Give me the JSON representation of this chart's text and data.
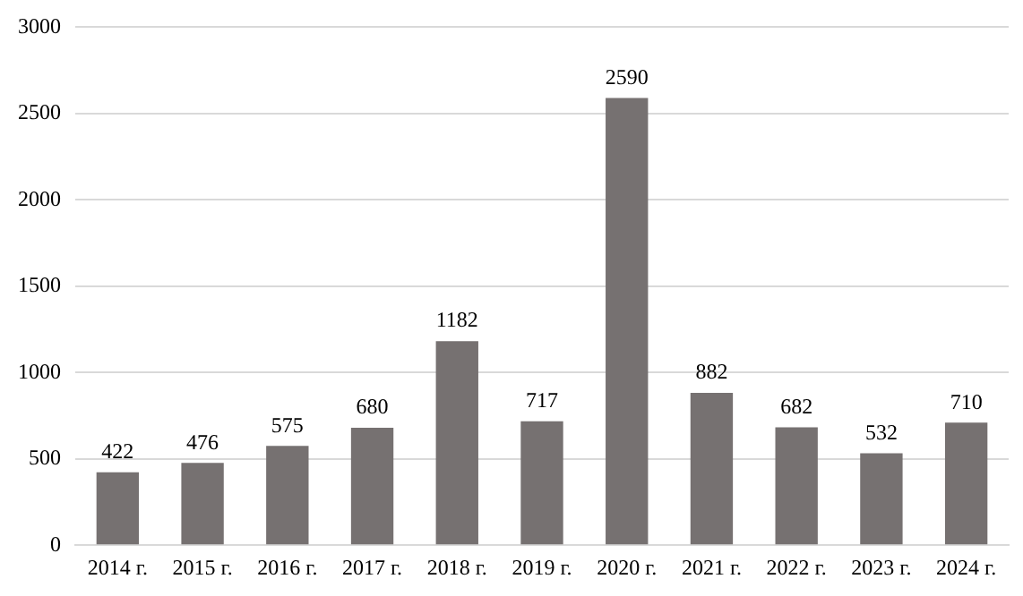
{
  "chart_data": {
    "type": "bar",
    "categories": [
      "2014 г.",
      "2015 г.",
      "2016 г.",
      "2017 г.",
      "2018 г.",
      "2019 г.",
      "2020 г.",
      "2021 г.",
      "2022 г.",
      "2023 г.",
      "2024 г."
    ],
    "values": [
      422,
      476,
      575,
      680,
      1182,
      717,
      2590,
      882,
      682,
      532,
      710
    ],
    "color": "#767171",
    "ylim": [
      0,
      3000
    ],
    "yticks": [
      0,
      500,
      1000,
      1500,
      2000,
      2500,
      3000
    ],
    "grid": "y",
    "data_labels": true
  }
}
